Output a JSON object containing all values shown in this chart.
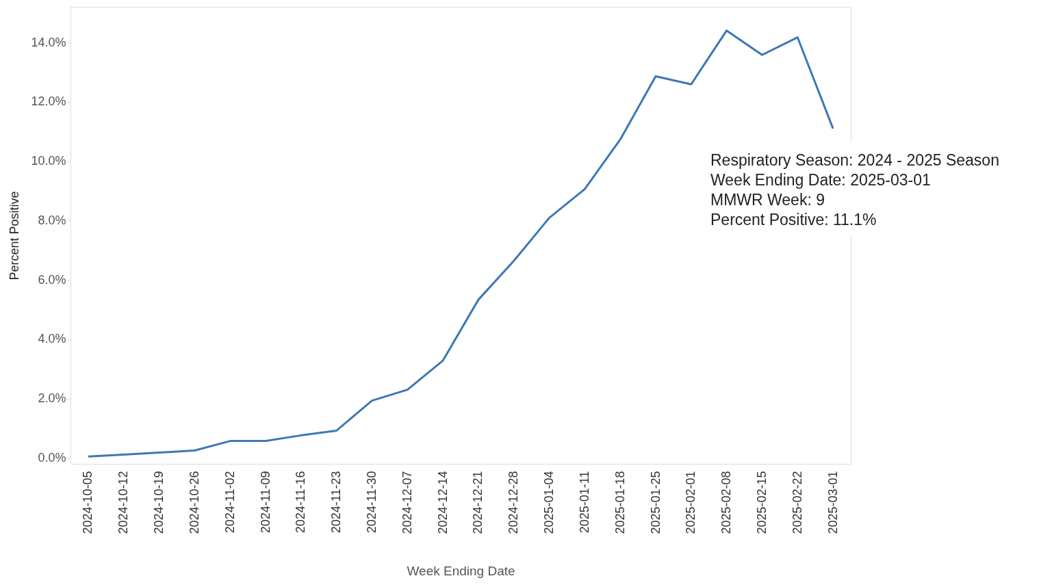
{
  "chart_data": {
    "type": "line",
    "xlabel": "Week Ending Date",
    "ylabel": "Percent Positive",
    "categories": [
      "2024-10-05",
      "2024-10-12",
      "2024-10-19",
      "2024-10-26",
      "2024-11-02",
      "2024-11-09",
      "2024-11-16",
      "2024-11-23",
      "2024-11-30",
      "2024-12-07",
      "2024-12-14",
      "2024-12-21",
      "2024-12-28",
      "2025-01-04",
      "2025-01-11",
      "2025-01-18",
      "2025-01-25",
      "2025-02-01",
      "2025-02-08",
      "2025-02-15",
      "2025-02-22",
      "2025-03-01"
    ],
    "series": [
      {
        "color": "#3c78b4",
        "values": [
          0.05,
          0.11,
          0.18,
          0.25,
          0.57,
          0.57,
          0.76,
          0.92,
          1.93,
          2.3,
          3.28,
          5.33,
          6.64,
          8.09,
          9.06,
          10.73,
          12.86,
          12.59,
          14.4,
          13.58,
          14.17,
          11.1
        ]
      }
    ],
    "ylim": [
      -0.2,
      15.2
    ],
    "yticks": [
      {
        "value": 0,
        "label": "0.0%"
      },
      {
        "value": 2,
        "label": "2.0%"
      },
      {
        "value": 4,
        "label": "4.0%"
      },
      {
        "value": 6,
        "label": "6.0%"
      },
      {
        "value": 8,
        "label": "8.0%"
      },
      {
        "value": 10,
        "label": "10.0%"
      },
      {
        "value": 12,
        "label": "12.0%"
      },
      {
        "value": 14,
        "label": "14.0%"
      }
    ],
    "grid": false,
    "marker": "none",
    "line_style": "solid",
    "annotations": [
      "Respiratory Season: 2024 - 2025 Season",
      "Week Ending Date: 2025-03-01",
      "MMWR Week: 9",
      "Percent Positive: 11.1%"
    ]
  }
}
